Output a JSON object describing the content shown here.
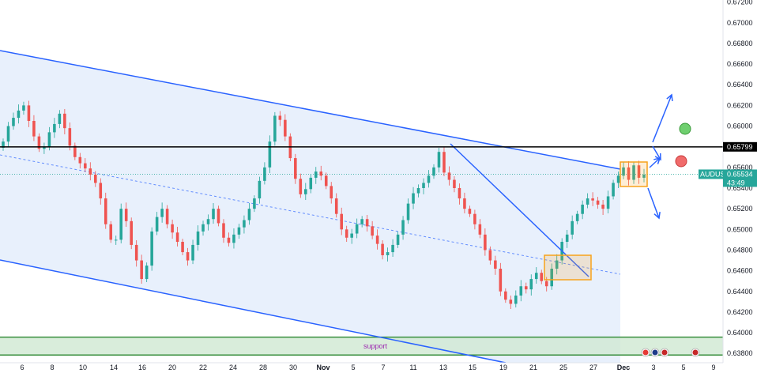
{
  "chart_data": {
    "type": "candlestick",
    "symbol": "AUDUSD",
    "last_price": "0.65534",
    "countdown": "43:49",
    "level_price": "0.65799",
    "support_label": "support",
    "ylim": [
      0.6371,
      0.6722
    ],
    "y_ticks": [
      "0.67200",
      "0.67000",
      "0.66800",
      "0.66600",
      "0.66400",
      "0.66200",
      "0.66000",
      "0.65600",
      "0.65400",
      "0.65200",
      "0.65000",
      "0.64800",
      "0.64600",
      "0.64400",
      "0.64200",
      "0.64000",
      "0.63800"
    ],
    "x_ticks": [
      "6",
      "8",
      "10",
      "14",
      "16",
      "20",
      "22",
      "24",
      "28",
      "30",
      "Nov",
      "5",
      "7",
      "11",
      "13",
      "15",
      "19",
      "21",
      "25",
      "27",
      "Dec",
      "3",
      "5",
      "9"
    ],
    "series_close": [
      0.6585,
      0.66,
      0.6608,
      0.6615,
      0.662,
      0.6605,
      0.659,
      0.6578,
      0.658,
      0.6594,
      0.6602,
      0.6612,
      0.6598,
      0.6581,
      0.657,
      0.6564,
      0.6559,
      0.6553,
      0.6545,
      0.653,
      0.6505,
      0.649,
      0.649,
      0.652,
      0.6508,
      0.6485,
      0.647,
      0.6452,
      0.6465,
      0.6498,
      0.6512,
      0.652,
      0.6505,
      0.6497,
      0.6488,
      0.6478,
      0.647,
      0.6485,
      0.6498,
      0.6505,
      0.651,
      0.652,
      0.6506,
      0.6492,
      0.6487,
      0.6495,
      0.6502,
      0.6509,
      0.652,
      0.653,
      0.6547,
      0.656,
      0.6585,
      0.661,
      0.6606,
      0.659,
      0.6569,
      0.6549,
      0.6534,
      0.6539,
      0.655,
      0.6556,
      0.6552,
      0.6542,
      0.653,
      0.6515,
      0.65,
      0.6492,
      0.6496,
      0.6505,
      0.651,
      0.6503,
      0.6494,
      0.6486,
      0.6475,
      0.6478,
      0.6485,
      0.6495,
      0.6509,
      0.6525,
      0.6535,
      0.654,
      0.6545,
      0.6552,
      0.656,
      0.6575,
      0.6555,
      0.6548,
      0.654,
      0.653,
      0.652,
      0.6515,
      0.6505,
      0.6495,
      0.648,
      0.647,
      0.6462,
      0.644,
      0.6432,
      0.6428,
      0.6436,
      0.6445,
      0.6442,
      0.6452,
      0.6458,
      0.645,
      0.6445,
      0.6462,
      0.647,
      0.6488,
      0.6495,
      0.6508,
      0.6515,
      0.6524,
      0.653,
      0.6528,
      0.6524,
      0.652,
      0.6532,
      0.6545,
      0.6552,
      0.656,
      0.6548,
      0.6562,
      0.655,
      0.6553
    ]
  },
  "colors": {
    "up": "#26a69a",
    "down": "#ef5350",
    "channel_line": "#2962ff",
    "channel_fill": "#e8f0fc",
    "support_zone": "#cfe8d2",
    "support_border": "#388e3c",
    "support_text": "#9c27b0",
    "box": "#f7a21b",
    "level": "#000000",
    "price_tag": "#26a69a",
    "circle_green": "#6fcf6f",
    "circle_red": "#f06b6b"
  },
  "icons": [
    "lightning-icon",
    "flag-au-icon",
    "flag-us-icon",
    "flag-us-icon"
  ]
}
